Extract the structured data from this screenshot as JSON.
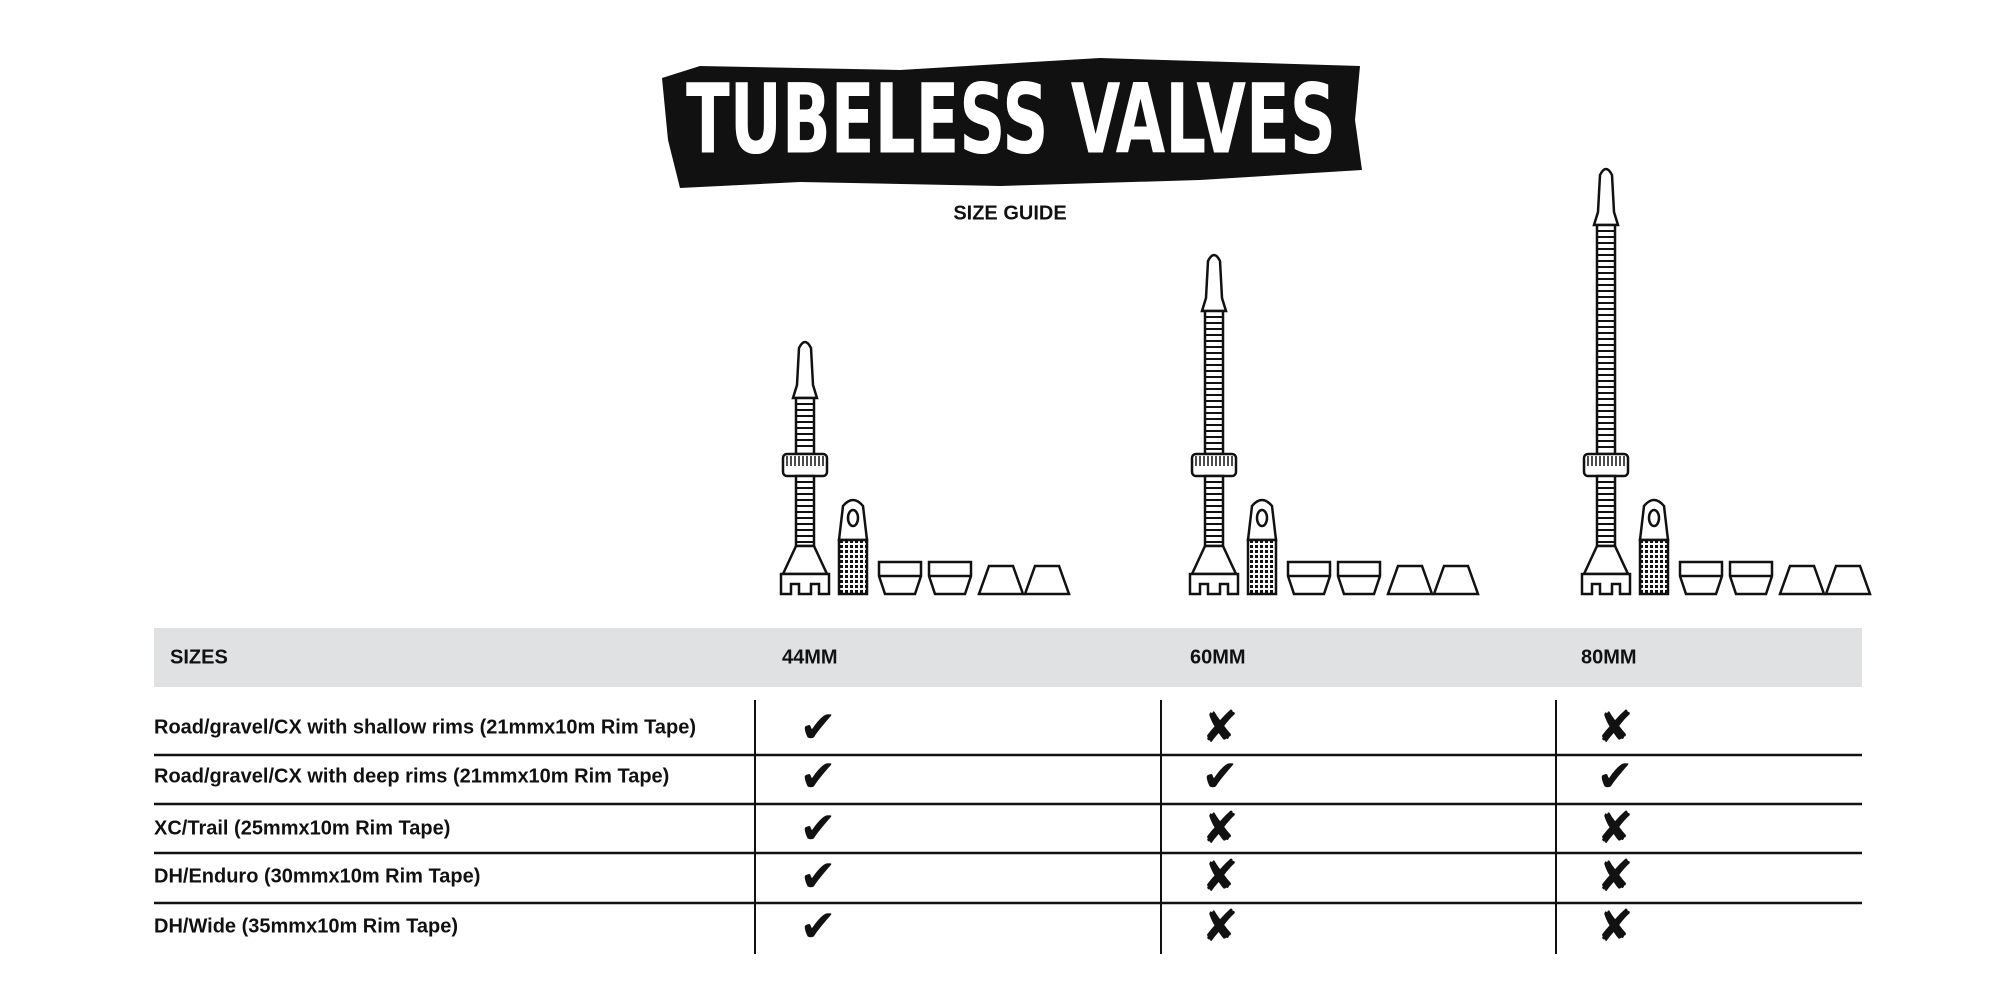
{
  "header": {
    "title": "TUBELESS VALVES",
    "subtitle": "SIZE GUIDE"
  },
  "table": {
    "header": [
      "SIZES",
      "44MM",
      "60MM",
      "80MM"
    ],
    "rows": [
      [
        "Road/gravel/CX with shallow rims (21mmx10m Rim Tape)",
        "✔",
        "✘",
        "✘"
      ],
      [
        "Road/gravel/CX with deep rims (21mmx10m Rim Tape)",
        "✔",
        "✔",
        "✔"
      ],
      [
        "XC/Trail (25mmx10m Rim Tape)",
        "✔",
        "✘",
        "✘"
      ],
      [
        "DH/Enduro (30mmx10m Rim Tape)",
        "✔",
        "✘",
        "✘"
      ],
      [
        "DH/Wide (35mmx10m Rim Tape)",
        "✔",
        "✘",
        "✘"
      ]
    ]
  }
}
